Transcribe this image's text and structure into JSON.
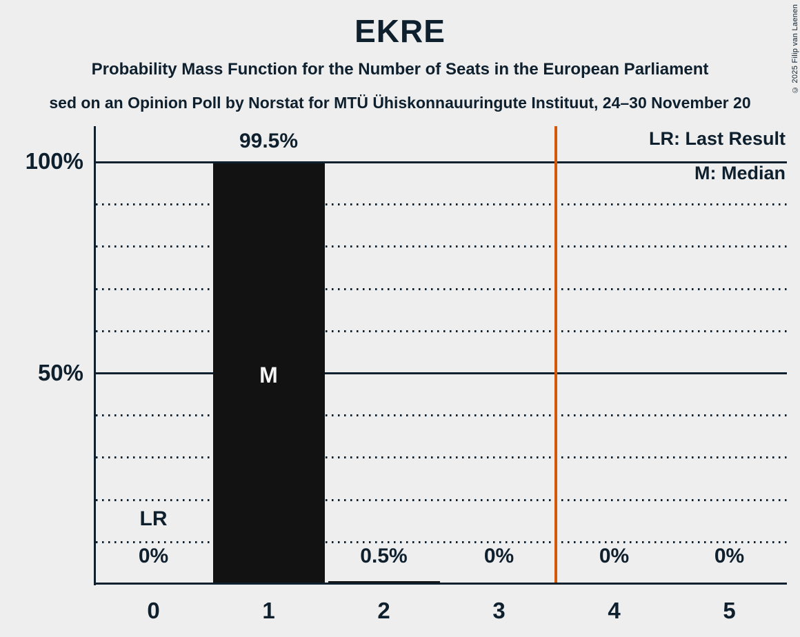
{
  "copyright": "© 2025 Filip van Laenen",
  "chart_data": {
    "type": "bar",
    "title": "EKRE",
    "subtitle": "Probability Mass Function for the Number of Seats in the European Parliament",
    "subtitle2_visible": "sed on an Opinion Poll by Norstat for MTÜ Ühiskonnauuringute Instituut, 24–30 November 20",
    "xlabel": "",
    "ylabel": "",
    "categories": [
      "0",
      "1",
      "2",
      "3",
      "4",
      "5"
    ],
    "values": [
      0,
      99.5,
      0.5,
      0,
      0,
      0
    ],
    "value_labels": [
      "0%",
      "99.5%",
      "0.5%",
      "0%",
      "0%",
      "0%"
    ],
    "yticks": [
      "100%",
      "50%"
    ],
    "ylim": [
      0,
      108
    ],
    "grid": "dotted horizontal lines every 10%, solid lines at 50% and 100%",
    "legend": [
      "LR: Last Result",
      "M: Median"
    ],
    "legend_position": "top-right",
    "annotations": {
      "last_result_label": "LR",
      "last_result_seats": "0",
      "median_label": "M",
      "median_seats": "1",
      "reference_line_x": 3.5
    },
    "colors": {
      "background": "#EEEEEE",
      "text": "#0E1F2D",
      "bar": "#121212",
      "median_text": "#F5F5F5",
      "reference_line": "#D4580A"
    }
  }
}
